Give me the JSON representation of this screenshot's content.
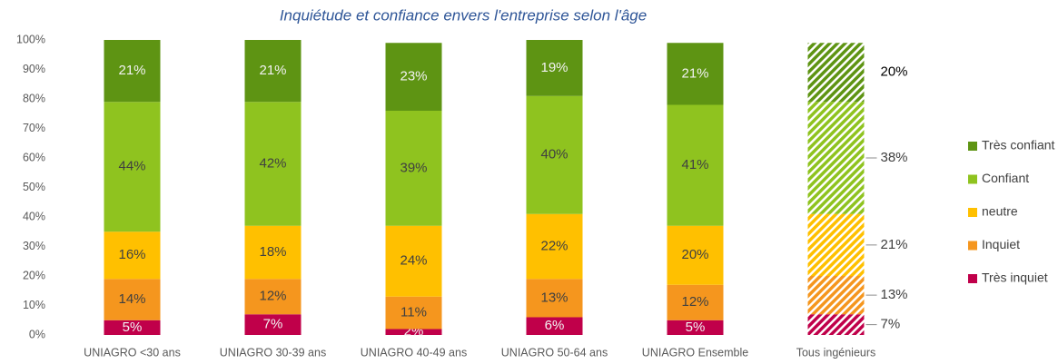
{
  "chart_data": {
    "type": "stacked-bar",
    "title": "Inquiétude et confiance envers l'entreprise selon l'âge",
    "categories": [
      "UNIAGRO <30 ans",
      "UNIAGRO 30-39 ans",
      "UNIAGRO 40-49 ans",
      "UNIAGRO 50-64 ans",
      "UNIAGRO Ensemble",
      "Tous ingénieurs"
    ],
    "series": [
      {
        "name": "Très inquiet",
        "color": "#c0004a",
        "values": [
          5,
          7,
          2,
          6,
          5,
          7
        ],
        "value_labels": [
          "5%",
          "7%",
          "2%",
          "6%",
          "5%",
          "7%"
        ]
      },
      {
        "name": "Inquiet",
        "color": "#f5961e",
        "values": [
          14,
          12,
          11,
          13,
          12,
          13
        ],
        "value_labels": [
          "14%",
          "12%",
          "11%",
          "13%",
          "12%",
          "13%"
        ]
      },
      {
        "name": "neutre",
        "color": "#ffc000",
        "values": [
          16,
          18,
          24,
          22,
          20,
          21
        ],
        "value_labels": [
          "16%",
          "18%",
          "24%",
          "22%",
          "20%",
          "21%"
        ]
      },
      {
        "name": "Confiant",
        "color": "#8fc31f",
        "values": [
          44,
          42,
          39,
          40,
          41,
          38
        ],
        "value_labels": [
          "44%",
          "42%",
          "39%",
          "40%",
          "41%",
          "38%"
        ]
      },
      {
        "name": "Très confiant",
        "color": "#5e9413",
        "values": [
          21,
          21,
          23,
          19,
          21,
          20
        ],
        "value_labels": [
          "21%",
          "21%",
          "23%",
          "19%",
          "21%",
          "20%"
        ]
      }
    ],
    "ylim": [
      0,
      100
    ],
    "yticks": [
      {
        "value": 0,
        "label": "0%"
      },
      {
        "value": 10,
        "label": "10%"
      },
      {
        "value": 20,
        "label": "20%"
      },
      {
        "value": 30,
        "label": "30%"
      },
      {
        "value": 40,
        "label": "40%"
      },
      {
        "value": 50,
        "label": "50%"
      },
      {
        "value": 60,
        "label": "60%"
      },
      {
        "value": 70,
        "label": "70%"
      },
      {
        "value": 80,
        "label": "80%"
      },
      {
        "value": 90,
        "label": "90%"
      },
      {
        "value": 100,
        "label": "100%"
      }
    ],
    "legend": "right"
  }
}
